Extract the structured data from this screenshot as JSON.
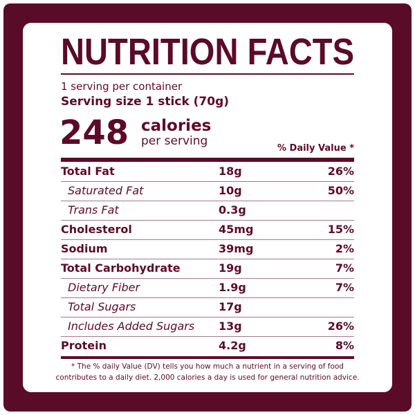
{
  "label": {
    "title": "NUTRITION FACTS",
    "servings_per_container": "1 serving per container",
    "serving_size": "Serving size 1 stick (70g)",
    "calories": "248",
    "calories_label": "calories",
    "calories_sub": "per serving",
    "daily_value_header": "% Daily Value *",
    "rows": [
      {
        "name": "Total Fat",
        "amount": "18g",
        "dv": "26%",
        "sub_items": [
          {
            "name": "Saturated Fat",
            "amount": "10g",
            "dv": "50%"
          },
          {
            "name": "Trans Fat",
            "amount": "0.3g"
          }
        ]
      },
      {
        "name": "Cholesterol",
        "amount": "45mg",
        "dv": "15%"
      },
      {
        "name": "Sodium",
        "amount": "39mg",
        "dv": "2%"
      },
      {
        "name": "Total Carbohydrate",
        "amount": "19g",
        "dv": "7%",
        "sub_items": [
          {
            "name": "Dietary Fiber",
            "amount": "1.9g",
            "dv": "7%"
          },
          {
            "name": "Total Sugars",
            "amount": "17g"
          },
          {
            "name": "Includes Added Sugars",
            "amount": "13g",
            "dv": "26%"
          }
        ]
      },
      {
        "name": "Protein",
        "amount": "4.2g",
        "dv": "8%"
      }
    ],
    "footnote": [
      "* The % daily Value (DV) tells you how much a nutrient in a serving of food",
      "contributes to a daily diet. 2,000 calories a day is used for general nutrition advice."
    ]
  }
}
